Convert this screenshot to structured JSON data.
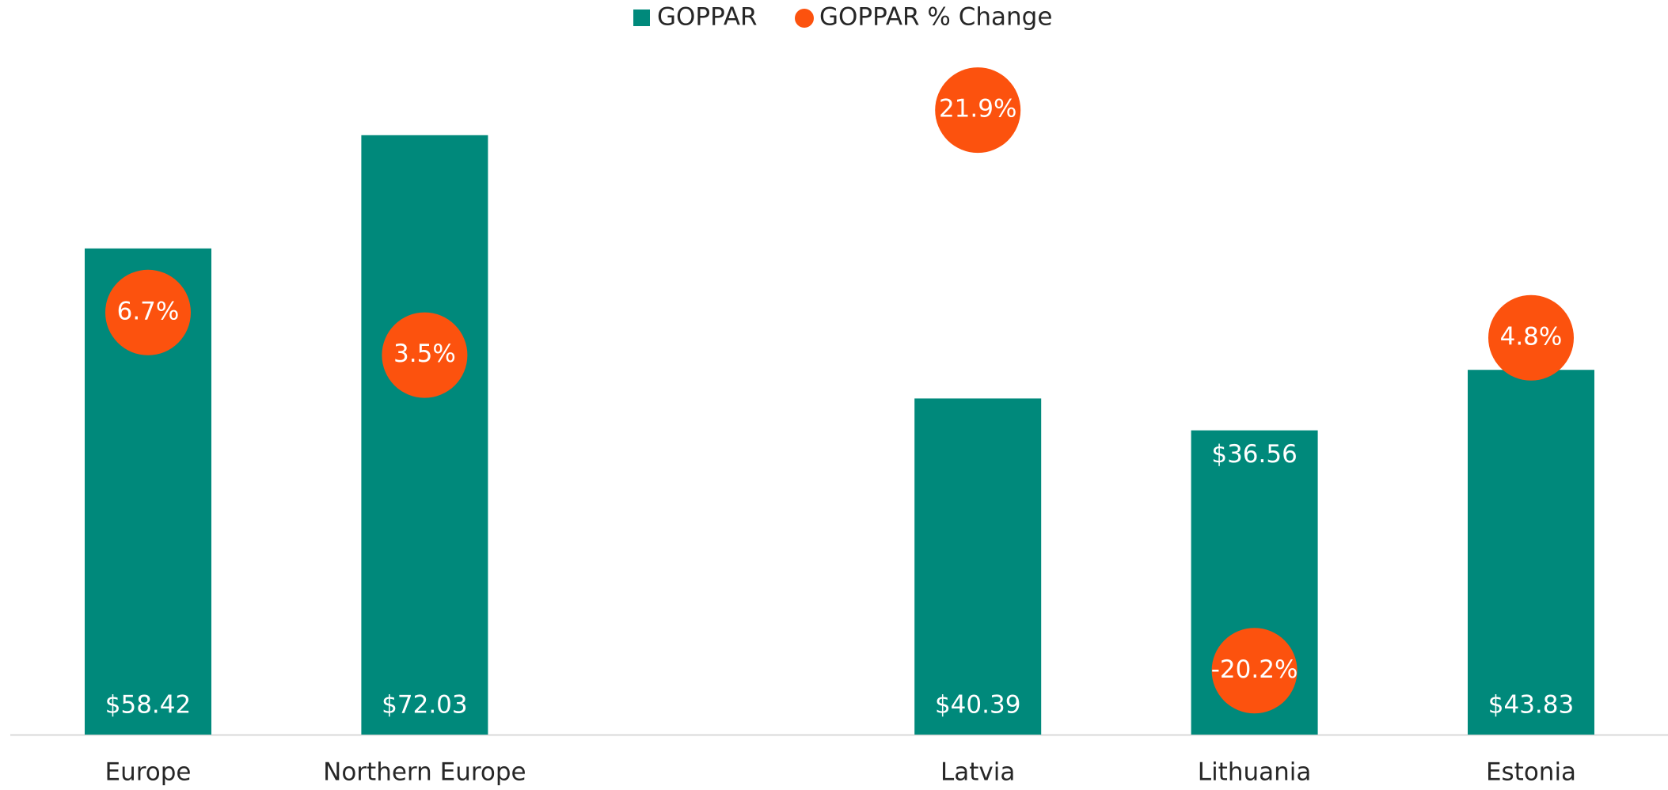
{
  "chart_data": {
    "type": "bar",
    "categories": [
      "Europe",
      "Northern Europe",
      null,
      "Latvia",
      "Lithuania",
      "Estonia"
    ],
    "series": [
      {
        "name": "GOPPAR",
        "type": "bar",
        "color": "#00897b",
        "values": [
          58.42,
          72.03,
          null,
          40.39,
          36.56,
          43.83
        ],
        "value_labels": [
          "$58.42",
          "$72.03",
          null,
          "$40.39",
          "$36.56",
          "$43.83"
        ]
      },
      {
        "name": "GOPPAR % Change",
        "type": "scatter",
        "axis": "y2",
        "color": "#fc520e",
        "values": [
          6.7,
          3.5,
          null,
          21.9,
          -20.2,
          4.8
        ],
        "value_labels": [
          "6.7%",
          "3.5%",
          null,
          "21.9%",
          "-20.2%",
          "4.8%"
        ]
      }
    ],
    "ylim": [
      0,
      80
    ],
    "y2lim": [
      -25,
      25
    ],
    "legend": "top"
  }
}
